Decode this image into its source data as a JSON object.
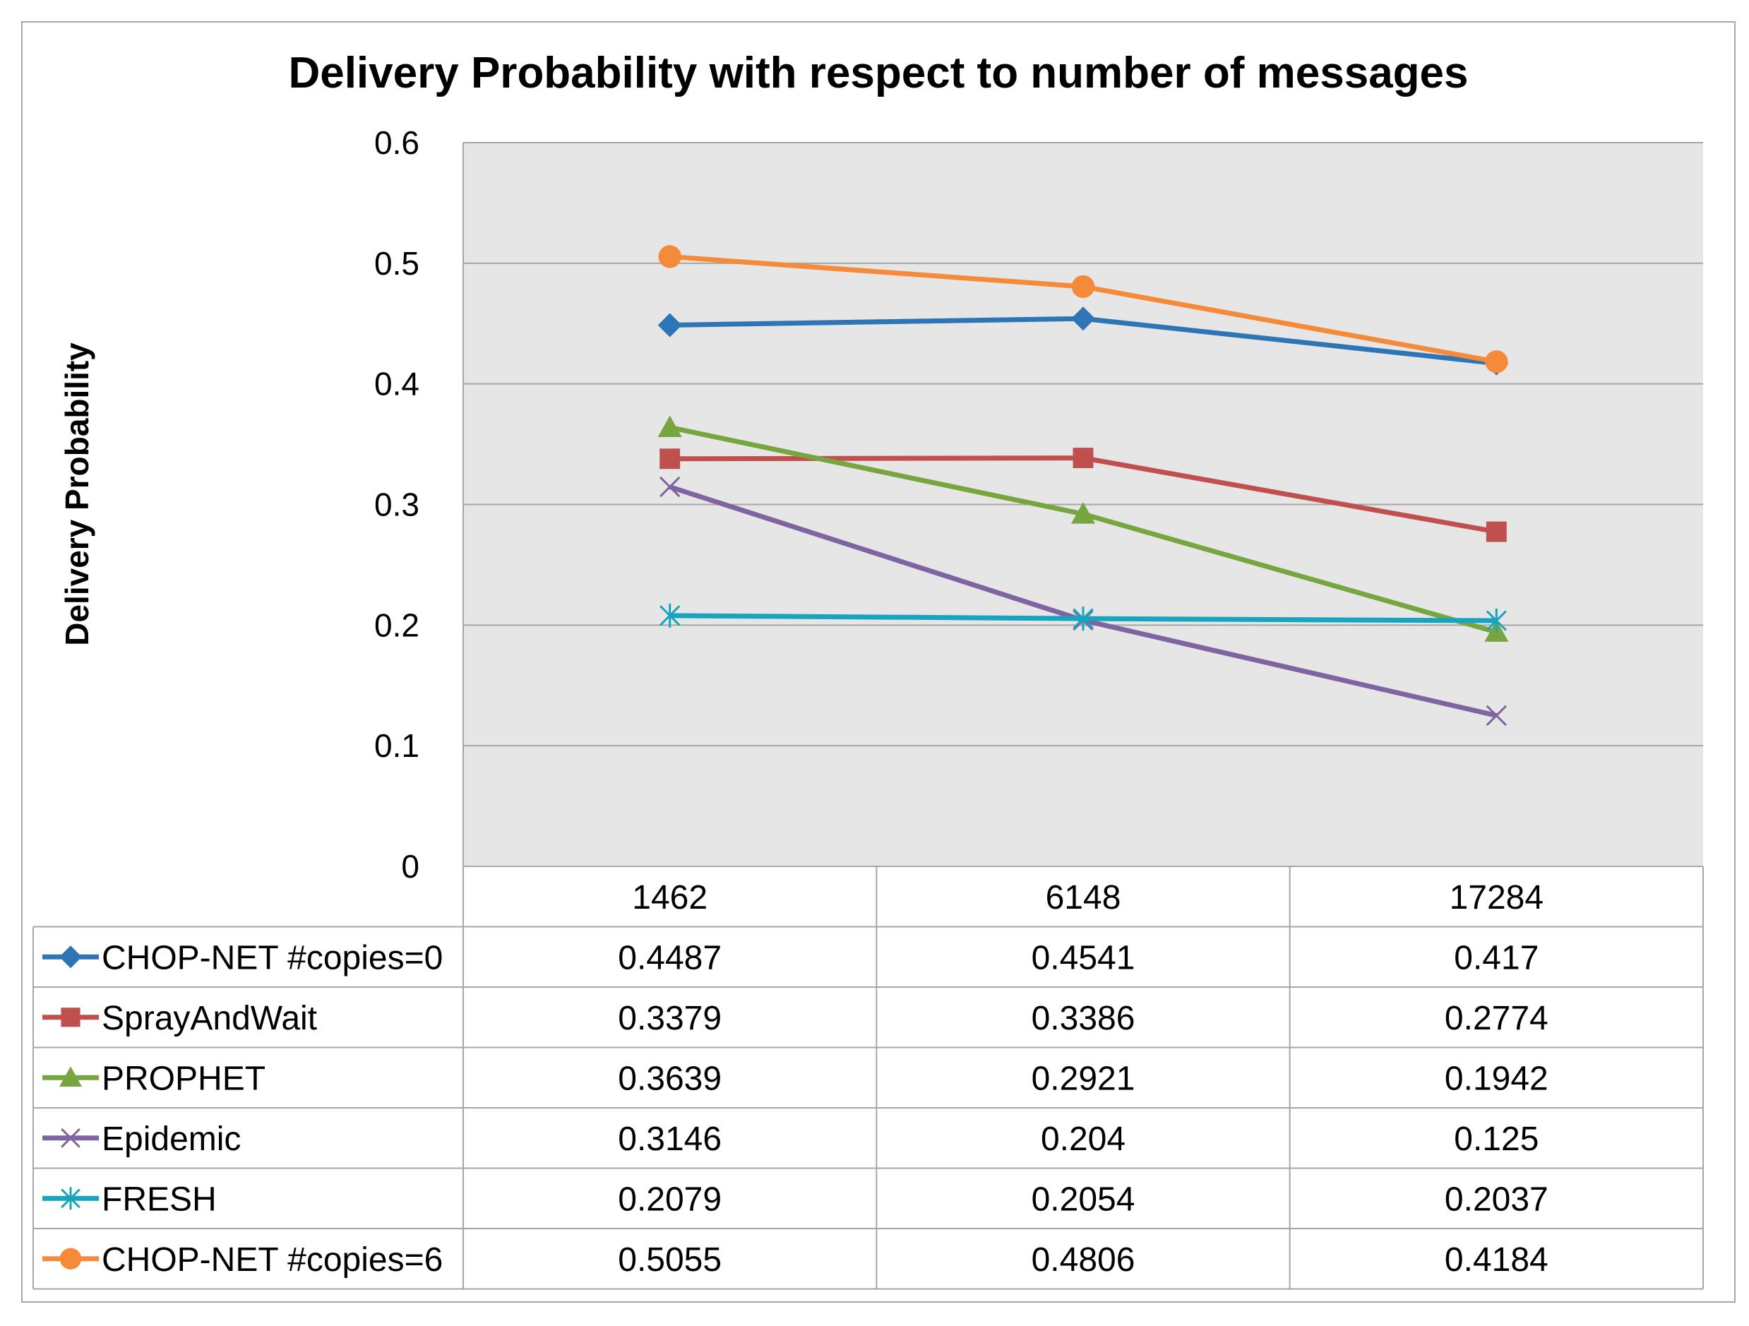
{
  "chart_data": {
    "type": "line",
    "title": "Delivery Probability with respect to number of messages",
    "ylabel": "Delivery Probability",
    "xlabel": "",
    "ylim": [
      0,
      0.6
    ],
    "yticks": [
      "0",
      "0.1",
      "0.2",
      "0.3",
      "0.4",
      "0.5",
      "0.6"
    ],
    "grid": true,
    "legend": "data-table",
    "categories": [
      "1462",
      "6148",
      "17284"
    ],
    "series": [
      {
        "name": "CHOP-NET #copies=0",
        "values": [
          0.4487,
          0.4541,
          0.417
        ],
        "labels": [
          "0.4487",
          "0.4541",
          "0.417"
        ],
        "color": "#2e75b6",
        "marker": "diamond"
      },
      {
        "name": "SprayAndWait",
        "values": [
          0.3379,
          0.3386,
          0.2774
        ],
        "labels": [
          "0.3379",
          "0.3386",
          "0.2774"
        ],
        "color": "#c0504d",
        "marker": "square"
      },
      {
        "name": "PROPHET",
        "values": [
          0.3639,
          0.2921,
          0.1942
        ],
        "labels": [
          "0.3639",
          "0.2921",
          "0.1942"
        ],
        "color": "#77a640",
        "marker": "triangle"
      },
      {
        "name": "Epidemic",
        "values": [
          0.3146,
          0.204,
          0.125
        ],
        "labels": [
          "0.3146",
          "0.204",
          "0.125"
        ],
        "color": "#8064a2",
        "marker": "x"
      },
      {
        "name": "FRESH",
        "values": [
          0.2079,
          0.2054,
          0.2037
        ],
        "labels": [
          "0.2079",
          "0.2054",
          "0.2037"
        ],
        "color": "#17a5bd",
        "marker": "star"
      },
      {
        "name": "CHOP-NET #copies=6",
        "values": [
          0.5055,
          0.4806,
          0.4184
        ],
        "labels": [
          "0.5055",
          "0.4806",
          "0.4184"
        ],
        "color": "#f58b3a",
        "marker": "circle"
      }
    ],
    "plot_background": "#e6e6e6",
    "grid_color": "#a6a6a6"
  }
}
